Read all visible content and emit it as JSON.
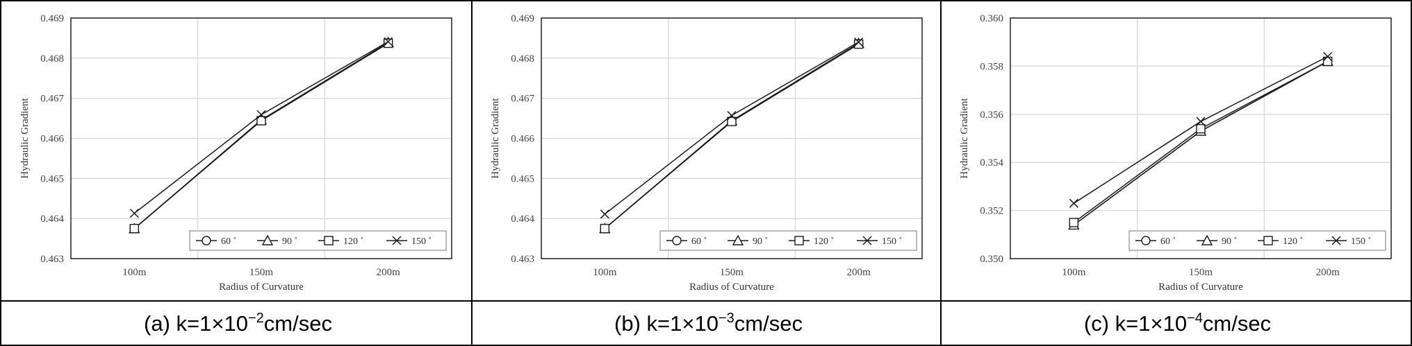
{
  "chart_data": [
    {
      "type": "line",
      "caption": {
        "prefix": "(a)",
        "formula": "k=1×10",
        "exponent": "−2",
        "unit": "cm/sec"
      },
      "xlabel": "Radius of Curvature",
      "ylabel": "Hydraulic Gradient",
      "categories": [
        "100m",
        "150m",
        "200m"
      ],
      "ylim": [
        0.463,
        0.469
      ],
      "yticks": [
        "0.463",
        "0.464",
        "0.465",
        "0.466",
        "0.467",
        "0.468",
        "0.469"
      ],
      "grid": true,
      "legend": "bottom-right",
      "series": [
        {
          "name": "60 ˚",
          "marker": "circle",
          "values": [
            0.46375,
            0.46645,
            0.46838
          ]
        },
        {
          "name": "90 ˚",
          "marker": "triangle",
          "values": [
            0.46375,
            0.46646,
            0.46839
          ]
        },
        {
          "name": "120 ˚",
          "marker": "square",
          "values": [
            0.46375,
            0.46644,
            0.46837
          ]
        },
        {
          "name": "150 ˚",
          "marker": "x",
          "values": [
            0.46413,
            0.46659,
            0.46841
          ]
        }
      ]
    },
    {
      "type": "line",
      "caption": {
        "prefix": "(b)",
        "formula": "k=1×10",
        "exponent": "−3",
        "unit": "cm/sec"
      },
      "xlabel": "Radius of Curvature",
      "ylabel": "Hydraulic Gradient",
      "categories": [
        "100m",
        "150m",
        "200m"
      ],
      "ylim": [
        0.463,
        0.469
      ],
      "yticks": [
        "0.463",
        "0.464",
        "0.465",
        "0.466",
        "0.467",
        "0.468",
        "0.469"
      ],
      "grid": true,
      "legend": "bottom-right",
      "series": [
        {
          "name": "60 ˚",
          "marker": "circle",
          "values": [
            0.46375,
            0.46643,
            0.46836
          ]
        },
        {
          "name": "90 ˚",
          "marker": "triangle",
          "values": [
            0.46375,
            0.46644,
            0.46837
          ]
        },
        {
          "name": "120 ˚",
          "marker": "square",
          "values": [
            0.46375,
            0.46642,
            0.46835
          ]
        },
        {
          "name": "150 ˚",
          "marker": "x",
          "values": [
            0.46411,
            0.46657,
            0.4684
          ]
        }
      ]
    },
    {
      "type": "line",
      "caption": {
        "prefix": "(c)",
        "formula": "k=1×10",
        "exponent": "−4",
        "unit": "cm/sec"
      },
      "xlabel": "Radius of Curvature",
      "ylabel": "Hydraulic Gradient",
      "categories": [
        "100m",
        "150m",
        "200m"
      ],
      "ylim": [
        0.35,
        0.36
      ],
      "yticks": [
        "0.350",
        "0.352",
        "0.354",
        "0.356",
        "0.358",
        "0.360"
      ],
      "grid": true,
      "legend": "bottom-right",
      "series": [
        {
          "name": "60 ˚",
          "marker": "circle",
          "values": [
            0.3514,
            0.3553,
            0.3582
          ]
        },
        {
          "name": "90 ˚",
          "marker": "triangle",
          "values": [
            0.3514,
            0.3553,
            0.3582
          ]
        },
        {
          "name": "120 ˚",
          "marker": "square",
          "values": [
            0.3515,
            0.3554,
            0.3582
          ]
        },
        {
          "name": "150 ˚",
          "marker": "x",
          "values": [
            0.3523,
            0.3557,
            0.3584
          ]
        }
      ]
    }
  ]
}
